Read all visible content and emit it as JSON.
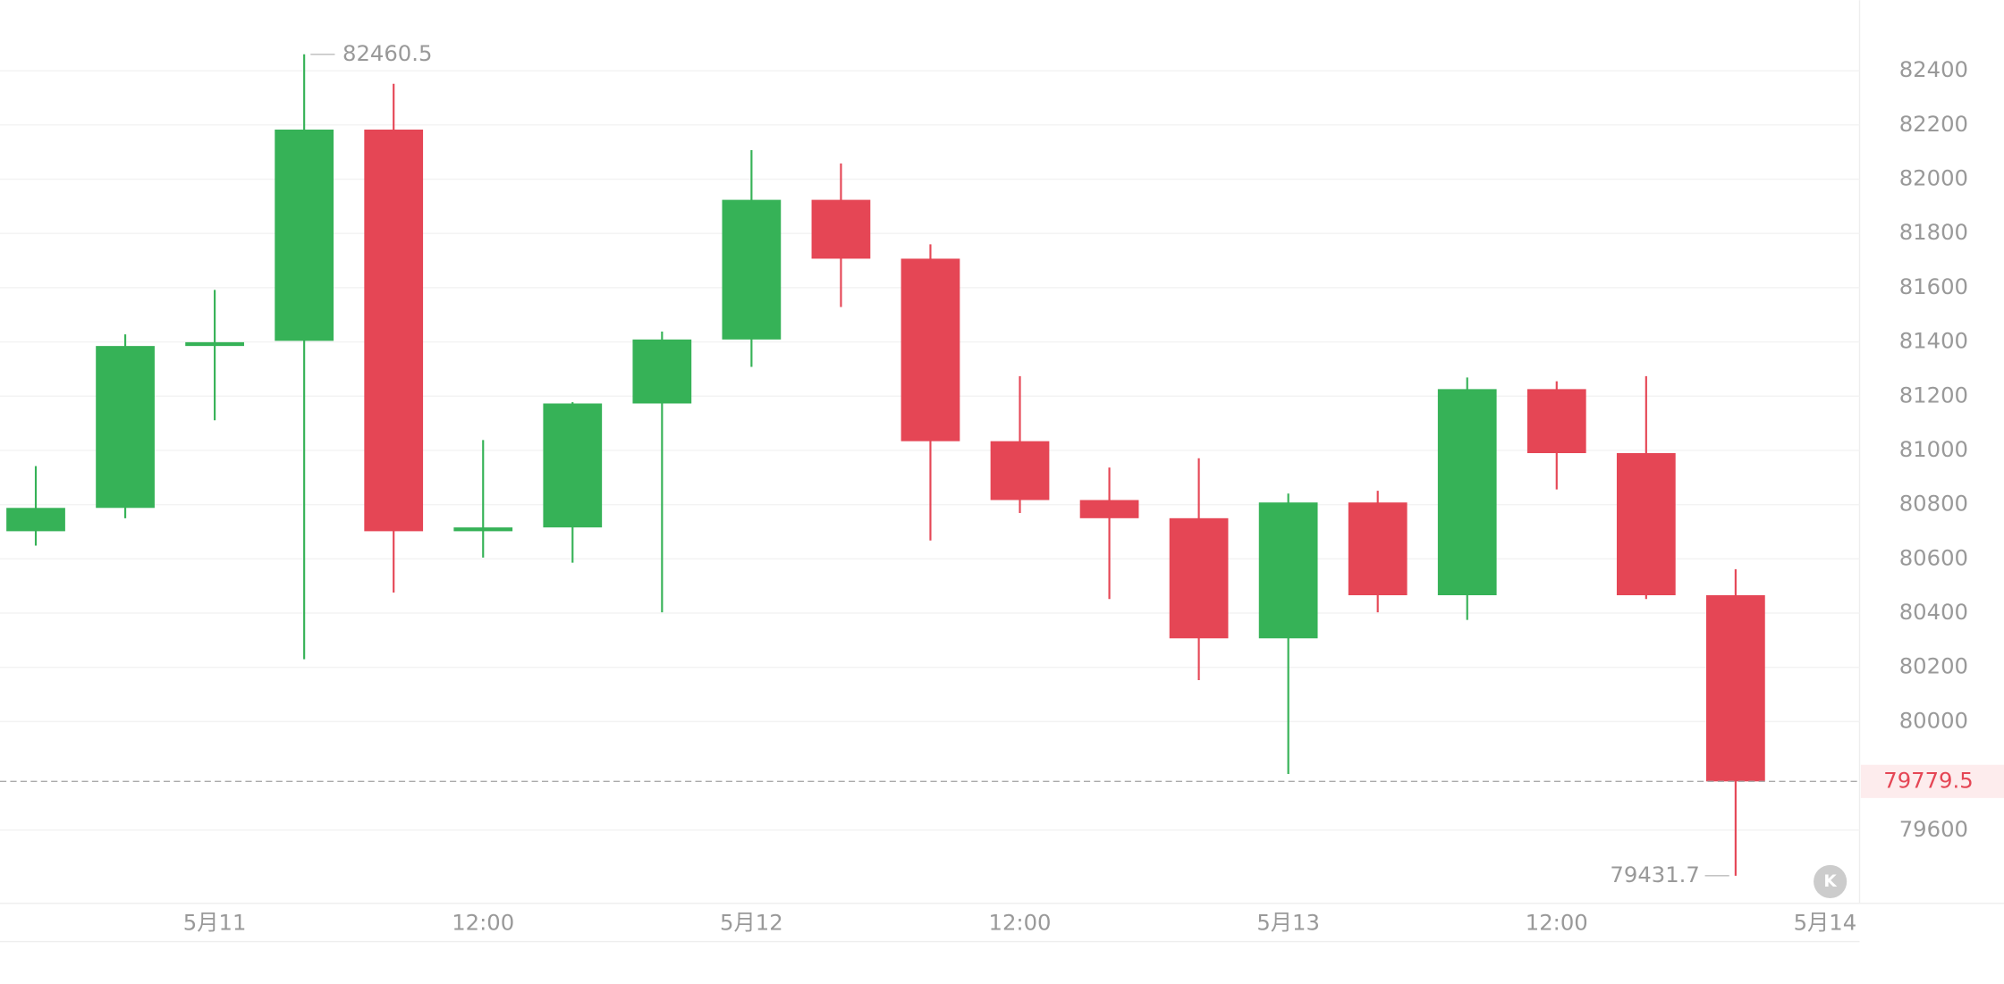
{
  "chart_data": {
    "type": "candlestick",
    "categories": [
      null,
      null,
      null,
      null,
      null,
      null,
      null,
      null,
      null,
      null,
      null,
      null,
      null,
      null,
      null,
      null,
      null,
      null,
      null,
      null
    ],
    "open": [
      80702,
      80788,
      81385,
      81404,
      82183,
      80702,
      80716,
      81173,
      81409,
      81924,
      81707,
      81034,
      80817,
      80750,
      80307,
      80808,
      80466,
      81226,
      80990,
      80466
    ],
    "high": [
      80942,
      81428,
      81592,
      82460.5,
      82352,
      81038,
      81178,
      81438,
      82107,
      82058,
      81760,
      81274,
      80937,
      80971,
      80841,
      80851,
      81269,
      81255,
      81274,
      80562
    ],
    "low": [
      80649,
      80750,
      81111,
      80230,
      80476,
      80605,
      80586,
      80403,
      81308,
      81529,
      80668,
      80769,
      80452,
      80153,
      79807,
      80403,
      80375,
      80856,
      80452,
      79431.7
    ],
    "close": [
      80788,
      81385,
      81399,
      82183,
      80702,
      80716,
      81173,
      81409,
      81924,
      81707,
      81034,
      80817,
      80750,
      80307,
      80808,
      80466,
      81226,
      80990,
      80466,
      79779.5
    ],
    "up_color": "#36b257",
    "down_color": "#e54655",
    "ylim": [
      79330,
      82660
    ],
    "yticks": [
      79600,
      80000,
      80200,
      80400,
      80600,
      80800,
      81000,
      81200,
      81400,
      81600,
      81800,
      82000,
      82200,
      82400
    ],
    "xticks": [
      {
        "value": 2,
        "label": "5月11"
      },
      {
        "value": 5,
        "label": "12:00"
      },
      {
        "value": 8,
        "label": "5月12"
      },
      {
        "value": 11,
        "label": "12:00"
      },
      {
        "value": 14,
        "label": "5月13"
      },
      {
        "value": 17,
        "label": "12:00"
      },
      {
        "value": 20,
        "label": "5月14"
      }
    ],
    "grid": true
  }
}
